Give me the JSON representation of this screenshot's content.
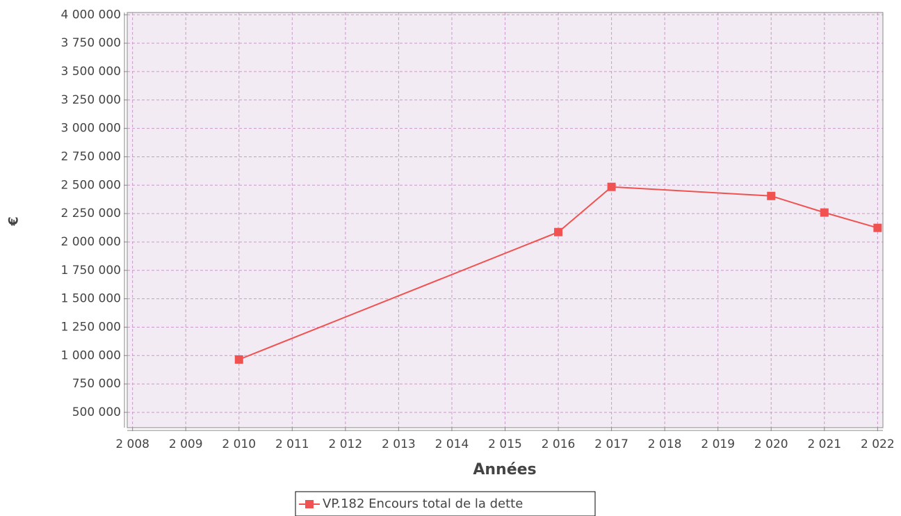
{
  "chart_data": {
    "type": "line",
    "xlabel": "Années",
    "ylabel": "€",
    "x": [
      2010,
      2016,
      2017,
      2020,
      2021,
      2022
    ],
    "series": [
      {
        "name": "VP.182 Encours total de la dette",
        "color": "#f05252",
        "values": [
          965000,
          2087000,
          2485000,
          2405000,
          2259000,
          2124000
        ]
      }
    ],
    "xlim": [
      2007.9,
      2022.1
    ],
    "xticks": [
      {
        "value": 2008,
        "label": "2 008"
      },
      {
        "value": 2009,
        "label": "2 009"
      },
      {
        "value": 2010,
        "label": "2 010"
      },
      {
        "value": 2011,
        "label": "2 011"
      },
      {
        "value": 2012,
        "label": "2 012"
      },
      {
        "value": 2013,
        "label": "2 013"
      },
      {
        "value": 2014,
        "label": "2 014"
      },
      {
        "value": 2015,
        "label": "2 015"
      },
      {
        "value": 2016,
        "label": "2 016"
      },
      {
        "value": 2017,
        "label": "2 017"
      },
      {
        "value": 2018,
        "label": "2 018"
      },
      {
        "value": 2019,
        "label": "2 019"
      },
      {
        "value": 2020,
        "label": "2 020"
      },
      {
        "value": 2021,
        "label": "2 021"
      },
      {
        "value": 2022,
        "label": "2 022"
      }
    ],
    "ylim": [
      365000,
      4020000
    ],
    "yticks": [
      {
        "value": 500000,
        "label": "500 000"
      },
      {
        "value": 750000,
        "label": "750 000"
      },
      {
        "value": 1000000,
        "label": "1 000 000"
      },
      {
        "value": 1250000,
        "label": "1 250 000"
      },
      {
        "value": 1500000,
        "label": "1 500 000"
      },
      {
        "value": 1750000,
        "label": "1 750 000"
      },
      {
        "value": 2000000,
        "label": "2 000 000"
      },
      {
        "value": 2250000,
        "label": "2 250 000"
      },
      {
        "value": 2500000,
        "label": "2 500 000"
      },
      {
        "value": 2750000,
        "label": "2 750 000"
      },
      {
        "value": 3000000,
        "label": "3 000 000"
      },
      {
        "value": 3250000,
        "label": "3 250 000"
      },
      {
        "value": 3500000,
        "label": "3 500 000"
      },
      {
        "value": 3750000,
        "label": "3 750 000"
      },
      {
        "value": 4000000,
        "label": "4 000 000"
      }
    ],
    "grid": true
  }
}
